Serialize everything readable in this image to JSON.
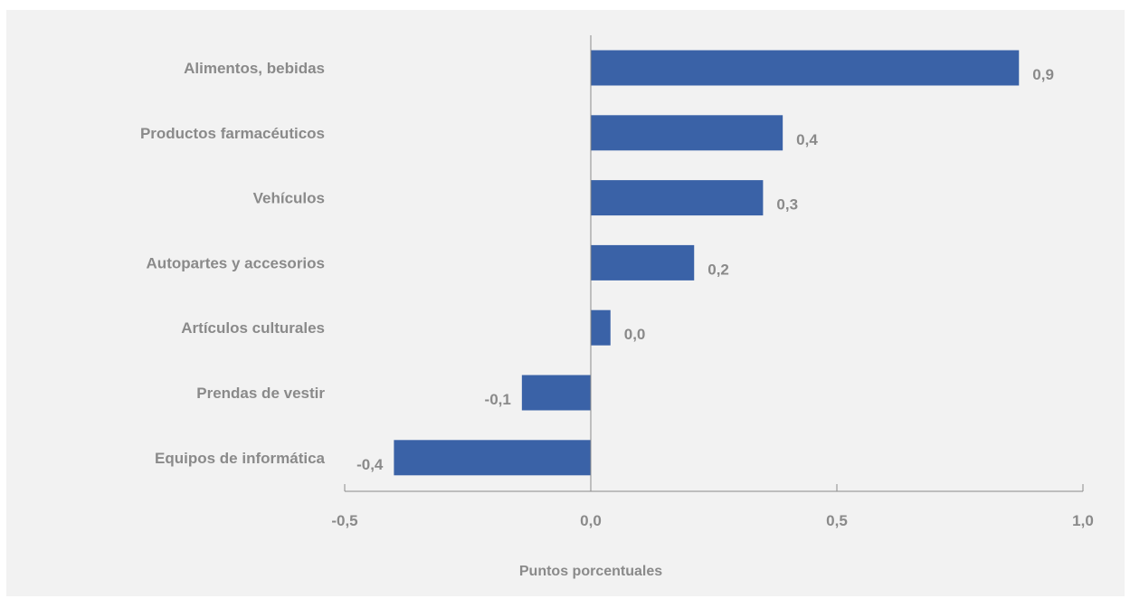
{
  "chart_data": {
    "type": "bar",
    "orientation": "horizontal",
    "categories": [
      "Alimentos, bebidas",
      "Productos farmacéuticos",
      "Vehículos",
      "Autopartes y accesorios",
      "Artículos culturales",
      "Prendas de vestir",
      "Equipos de informática"
    ],
    "values": [
      0.87,
      0.39,
      0.35,
      0.21,
      0.04,
      -0.14,
      -0.4
    ],
    "value_labels": [
      "0,9",
      "0,4",
      "0,3",
      "0,2",
      "0,0",
      "-0,1",
      "-0,4"
    ],
    "xlabel": "Puntos porcentuales",
    "xlim": [
      -0.5,
      1.0
    ],
    "xticks": [
      -0.5,
      0.0,
      0.5,
      1.0
    ],
    "xtick_labels": [
      "-0,5",
      "0,0",
      "0,5",
      "1,0"
    ],
    "grid": false,
    "bar_color": "#3a62a7",
    "text_color": "#8a8a8a",
    "background": "#f2f2f2"
  }
}
